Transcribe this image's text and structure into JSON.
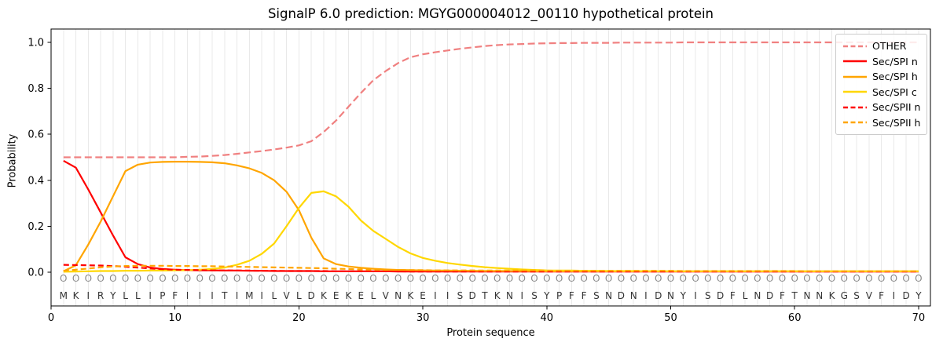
{
  "title": "SignalP 6.0 prediction: MGYG000004012_00110 hypothetical protein",
  "chart_data": {
    "type": "line",
    "title": "SignalP 6.0 prediction: MGYG000004012_00110 hypothetical protein",
    "xlabel": "Protein sequence",
    "ylabel": "Probability",
    "xlim": [
      0,
      71
    ],
    "ylim": [
      -0.15,
      1.06
    ],
    "xticks": [
      0,
      10,
      20,
      30,
      40,
      50,
      60,
      70
    ],
    "ytick_labels": [
      "0.0",
      "0.2",
      "0.4",
      "0.6",
      "0.8",
      "1.0"
    ],
    "grid": "vertical gridline at every residue position",
    "legend_position": "upper right",
    "marker_char": "O",
    "sequence": "MKIRYLLIPFIIITIMILVLDKEKELVNKEIISDTKNISYPFFSNDNIDNYISDFLNDFTNNKGSVFIDY",
    "colors": {
      "other": "#F08080",
      "red": "#FF0000",
      "orange": "#FFA500",
      "gold": "#FFD700",
      "grid": "#e9e9e9",
      "marker_gray": "#8a8a8a",
      "letter_dark": "#333333"
    },
    "series": [
      {
        "name": "OTHER",
        "color": "#F08080",
        "dashed": true,
        "values": [
          0.5,
          0.5,
          0.5,
          0.5,
          0.5,
          0.5,
          0.5,
          0.5,
          0.5,
          0.5,
          0.502,
          0.503,
          0.506,
          0.51,
          0.515,
          0.521,
          0.527,
          0.534,
          0.542,
          0.552,
          0.57,
          0.61,
          0.66,
          0.72,
          0.78,
          0.835,
          0.875,
          0.91,
          0.935,
          0.948,
          0.957,
          0.965,
          0.972,
          0.978,
          0.984,
          0.988,
          0.991,
          0.993,
          0.995,
          0.996,
          0.997,
          0.997,
          0.998,
          0.998,
          0.998,
          0.999,
          0.999,
          0.999,
          0.999,
          0.999,
          1.0,
          1.0,
          1.0,
          1.0,
          1.0,
          1.0,
          1.0,
          1.0,
          1.0,
          1.0,
          1.0,
          1.0,
          1.0,
          1.0,
          1.0,
          1.0,
          1.0,
          1.0,
          1.0,
          1.0
        ]
      },
      {
        "name": "Sec/SPI n",
        "color": "#FF0000",
        "dashed": false,
        "values": [
          0.485,
          0.455,
          0.36,
          0.26,
          0.16,
          0.065,
          0.035,
          0.02,
          0.014,
          0.011,
          0.009,
          0.008,
          0.008,
          0.007,
          0.007,
          0.006,
          0.006,
          0.005,
          0.005,
          0.005,
          0.005,
          0.004,
          0.004,
          0.004,
          0.004,
          0.004,
          0.004,
          0.003,
          0.003,
          0.003,
          0.003,
          0.003,
          0.003,
          0.003,
          0.003,
          0.003,
          0.003,
          0.003,
          0.003,
          0.003,
          0.003,
          0.003,
          0.003,
          0.003,
          0.003,
          0.003,
          0.003,
          0.003,
          0.003,
          0.003,
          0.003,
          0.003,
          0.003,
          0.003,
          0.003,
          0.003,
          0.003,
          0.003,
          0.003,
          0.003,
          0.003,
          0.003,
          0.003,
          0.003,
          0.003,
          0.003,
          0.003,
          0.003,
          0.003,
          0.003
        ]
      },
      {
        "name": "Sec/SPI h",
        "color": "#FFA500",
        "dashed": false,
        "values": [
          0.004,
          0.03,
          0.12,
          0.22,
          0.33,
          0.44,
          0.468,
          0.477,
          0.48,
          0.481,
          0.481,
          0.48,
          0.478,
          0.474,
          0.465,
          0.452,
          0.432,
          0.4,
          0.35,
          0.27,
          0.15,
          0.06,
          0.035,
          0.025,
          0.019,
          0.015,
          0.012,
          0.01,
          0.009,
          0.008,
          0.007,
          0.007,
          0.006,
          0.006,
          0.005,
          0.005,
          0.005,
          0.005,
          0.004,
          0.004,
          0.004,
          0.004,
          0.004,
          0.004,
          0.004,
          0.004,
          0.004,
          0.004,
          0.004,
          0.004,
          0.004,
          0.004,
          0.004,
          0.004,
          0.004,
          0.004,
          0.004,
          0.004,
          0.004,
          0.004,
          0.004,
          0.004,
          0.004,
          0.004,
          0.004,
          0.004,
          0.004,
          0.004,
          0.004,
          0.004
        ]
      },
      {
        "name": "Sec/SPI c",
        "color": "#FFD700",
        "dashed": false,
        "values": [
          0.002,
          0.003,
          0.004,
          0.005,
          0.005,
          0.006,
          0.006,
          0.007,
          0.007,
          0.008,
          0.009,
          0.011,
          0.014,
          0.02,
          0.032,
          0.05,
          0.08,
          0.125,
          0.2,
          0.28,
          0.345,
          0.352,
          0.33,
          0.285,
          0.225,
          0.18,
          0.145,
          0.11,
          0.082,
          0.062,
          0.05,
          0.04,
          0.033,
          0.027,
          0.022,
          0.018,
          0.015,
          0.012,
          0.01,
          0.008,
          0.007,
          0.007,
          0.006,
          0.006,
          0.005,
          0.005,
          0.005,
          0.004,
          0.004,
          0.004,
          0.004,
          0.004,
          0.004,
          0.004,
          0.004,
          0.004,
          0.004,
          0.004,
          0.004,
          0.004,
          0.004,
          0.004,
          0.004,
          0.004,
          0.004,
          0.004,
          0.004,
          0.004,
          0.004,
          0.004
        ]
      },
      {
        "name": "Sec/SPII n",
        "color": "#FF0000",
        "dashed": true,
        "values": [
          0.032,
          0.031,
          0.03,
          0.029,
          0.027,
          0.024,
          0.02,
          0.016,
          0.013,
          0.011,
          0.01,
          0.009,
          0.008,
          0.008,
          0.007,
          0.007,
          0.006,
          0.006,
          0.005,
          0.005,
          0.005,
          0.005,
          0.004,
          0.004,
          0.004,
          0.004,
          0.004,
          0.004,
          0.003,
          0.003,
          0.003,
          0.003,
          0.003,
          0.003,
          0.003,
          0.003,
          0.003,
          0.003,
          0.003,
          0.003,
          0.003,
          0.003,
          0.003,
          0.003,
          0.003,
          0.003,
          0.003,
          0.003,
          0.003,
          0.003,
          0.003,
          0.003,
          0.003,
          0.003,
          0.003,
          0.003,
          0.003,
          0.003,
          0.003,
          0.003,
          0.003,
          0.003,
          0.003,
          0.003,
          0.003,
          0.003,
          0.003,
          0.003,
          0.003,
          0.003
        ]
      },
      {
        "name": "Sec/SPII h",
        "color": "#FFA500",
        "dashed": true,
        "values": [
          0.006,
          0.011,
          0.016,
          0.021,
          0.025,
          0.027,
          0.028,
          0.028,
          0.028,
          0.027,
          0.027,
          0.026,
          0.026,
          0.025,
          0.024,
          0.023,
          0.022,
          0.021,
          0.02,
          0.019,
          0.018,
          0.017,
          0.015,
          0.014,
          0.012,
          0.011,
          0.01,
          0.01,
          0.009,
          0.009,
          0.008,
          0.008,
          0.008,
          0.008,
          0.007,
          0.007,
          0.007,
          0.007,
          0.007,
          0.007,
          0.006,
          0.006,
          0.006,
          0.006,
          0.006,
          0.006,
          0.006,
          0.006,
          0.006,
          0.006,
          0.005,
          0.005,
          0.005,
          0.005,
          0.005,
          0.005,
          0.005,
          0.005,
          0.005,
          0.005,
          0.004,
          0.004,
          0.004,
          0.004,
          0.004,
          0.004,
          0.004,
          0.004,
          0.004,
          0.004
        ]
      }
    ]
  }
}
